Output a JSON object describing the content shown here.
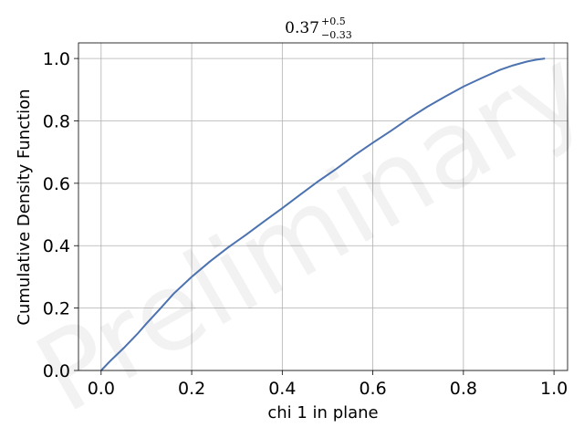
{
  "chart_data": {
    "type": "line",
    "title": {
      "value": "0.37",
      "upper": "+0.5",
      "lower": "−0.33"
    },
    "xlabel": "chi 1 in plane",
    "ylabel": "Cumulative Density Function",
    "xlim": [
      -0.05,
      1.03
    ],
    "ylim": [
      0.0,
      1.05
    ],
    "x_ticks": [
      0.0,
      0.2,
      0.4,
      0.6,
      0.8,
      1.0
    ],
    "x_tick_labels": [
      "0.0",
      "0.2",
      "0.4",
      "0.6",
      "0.8",
      "1.0"
    ],
    "y_ticks": [
      0.0,
      0.2,
      0.4,
      0.6,
      0.8,
      1.0
    ],
    "y_tick_labels": [
      "0.0",
      "0.2",
      "0.4",
      "0.6",
      "0.8",
      "1.0"
    ],
    "grid": true,
    "watermark": "Preliminary",
    "line_color": "#4c72b0",
    "series": [
      {
        "x": [
          0.0,
          0.02,
          0.05,
          0.08,
          0.1,
          0.13,
          0.16,
          0.2,
          0.24,
          0.28,
          0.32,
          0.36,
          0.4,
          0.44,
          0.48,
          0.52,
          0.56,
          0.6,
          0.64,
          0.68,
          0.72,
          0.76,
          0.8,
          0.84,
          0.88,
          0.91,
          0.94,
          0.96,
          0.98
        ],
        "y": [
          0.0,
          0.03,
          0.072,
          0.117,
          0.15,
          0.197,
          0.246,
          0.3,
          0.349,
          0.394,
          0.435,
          0.478,
          0.52,
          0.564,
          0.607,
          0.647,
          0.69,
          0.73,
          0.768,
          0.808,
          0.845,
          0.878,
          0.91,
          0.937,
          0.963,
          0.978,
          0.99,
          0.996,
          1.0
        ]
      }
    ]
  }
}
